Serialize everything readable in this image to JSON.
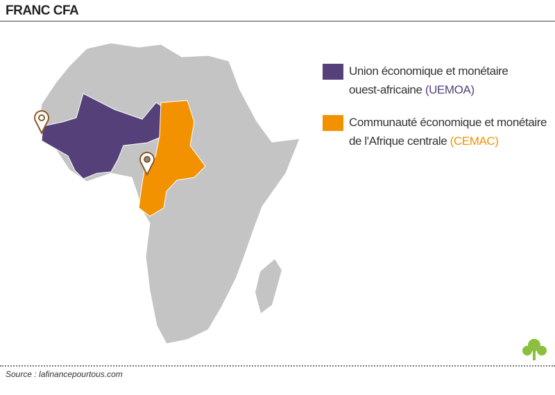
{
  "header": {
    "title": "FRANC CFA"
  },
  "legend": [
    {
      "line1": "Union économique et monétaire",
      "line2": "ouest-africaine",
      "abbr": "(UEMOA)",
      "color": "#55407a"
    },
    {
      "line1": "Communauté économique et monétaire",
      "line2": "de l'Afrique centrale",
      "abbr": "(CEMAC)",
      "color": "#f39200"
    }
  ],
  "footer": {
    "source": "Source : lafinancepourtous.com"
  }
}
